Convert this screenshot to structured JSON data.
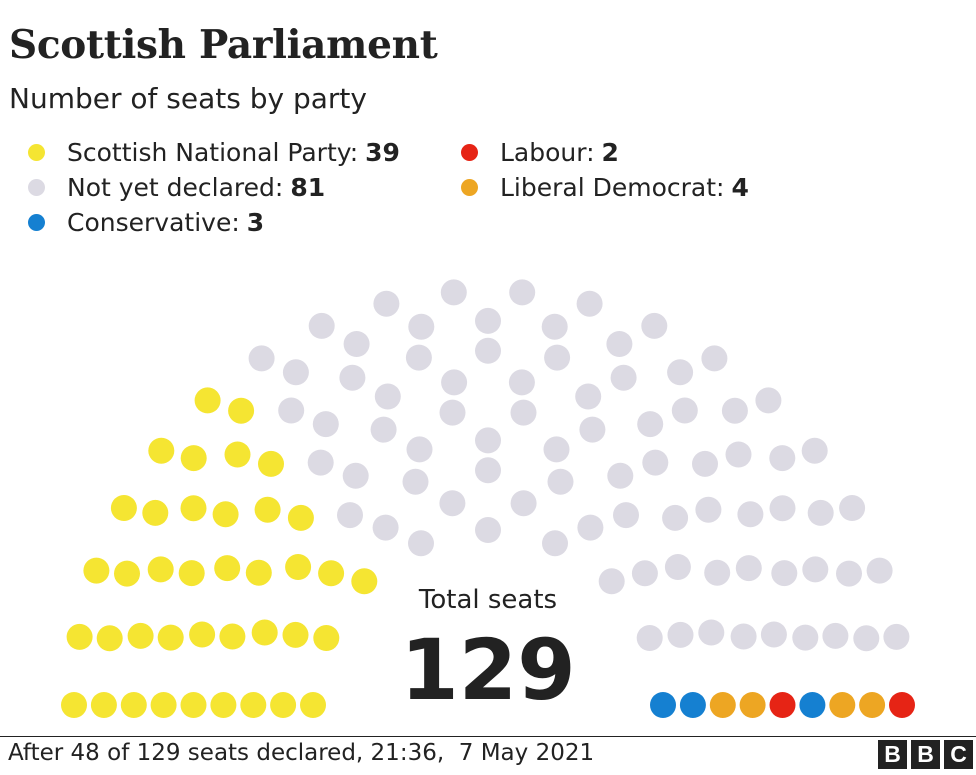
{
  "header": {
    "title": "Scottish Parliament",
    "subtitle": "Number of seats by party"
  },
  "legend": [
    {
      "label": "Scottish National Party:",
      "value": "39",
      "color": "#f5e532"
    },
    {
      "label": "Not yet declared:",
      "value": "81",
      "color": "#dcdae3"
    },
    {
      "label": "Conservative:",
      "value": "3",
      "color": "#1580d1"
    },
    {
      "label": "Labour:",
      "value": "2",
      "color": "#e62415"
    },
    {
      "label": "Liberal Democrat:",
      "value": "4",
      "color": "#eda623"
    }
  ],
  "total": {
    "label": "Total seats",
    "value": "129"
  },
  "footer": {
    "note": "After 48 of 129 seats declared, 21:36,  7 May 2021",
    "logo_letters": [
      "B",
      "B",
      "C"
    ]
  },
  "chart_data": {
    "type": "parliament",
    "total_seats": 129,
    "series": [
      {
        "name": "Scottish National Party",
        "value": 39,
        "color": "#f5e532"
      },
      {
        "name": "Not yet declared",
        "value": 81,
        "color": "#dcdae3"
      },
      {
        "name": "Conservative",
        "value": 3,
        "color": "#1580d1"
      },
      {
        "name": "Liberal Democrat",
        "value": 4,
        "color": "#eda623"
      },
      {
        "name": "Labour",
        "value": 2,
        "color": "#e62415"
      }
    ]
  }
}
